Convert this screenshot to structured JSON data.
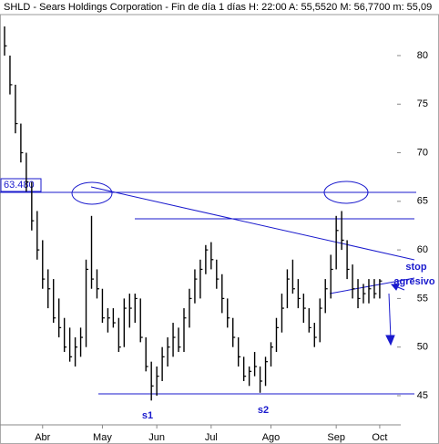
{
  "chart_data": {
    "type": "ohlc",
    "title": "SHLD - Sears Holdings Corporation  - Fin de día 1 días H: 22:00  A: 55,5520  M: 56,7700  m: 55,09",
    "categories": [
      null,
      null,
      null,
      null,
      null,
      null,
      null,
      "Abr",
      null,
      null,
      null,
      null,
      null,
      null,
      null,
      null,
      null,
      null,
      "May",
      null,
      null,
      null,
      null,
      null,
      null,
      null,
      null,
      null,
      "Jun",
      null,
      null,
      null,
      null,
      null,
      null,
      null,
      null,
      null,
      "Jul",
      null,
      null,
      null,
      null,
      null,
      null,
      null,
      null,
      null,
      null,
      "Ago",
      null,
      null,
      null,
      null,
      null,
      null,
      null,
      null,
      null,
      null,
      null,
      "Sep",
      null,
      null,
      null,
      null,
      null,
      null,
      null,
      "Oct"
    ],
    "high": [
      83,
      80,
      77,
      73,
      70,
      67,
      64,
      61,
      58,
      57,
      55,
      53,
      52,
      51,
      52,
      59,
      63.5,
      58,
      56,
      54,
      54,
      53,
      55,
      55.5,
      55.5,
      55,
      51,
      48.5,
      48,
      50,
      51,
      52.5,
      52,
      54,
      56,
      58,
      59,
      60.5,
      60.8,
      59,
      57.5,
      55,
      53,
      51,
      49,
      48,
      49.5,
      48,
      49,
      50.5,
      53,
      55.5,
      58,
      59,
      57,
      55.5,
      54,
      52.5,
      55,
      57,
      59.5,
      63.5,
      64,
      61,
      58.5,
      57,
      56.5,
      57,
      57,
      57
    ],
    "low": [
      80,
      76,
      72,
      69,
      66,
      62,
      59,
      56,
      54,
      52.5,
      51,
      49.5,
      48.5,
      48,
      49,
      50,
      56,
      55,
      52.5,
      51.5,
      52,
      49.5,
      50,
      52,
      52.5,
      50.5,
      47.5,
      44.5,
      45,
      46.5,
      48,
      49,
      49.5,
      49.5,
      52,
      54.5,
      55,
      57.5,
      58,
      56,
      53.5,
      52,
      50,
      48,
      46.5,
      46,
      47,
      45.3,
      46,
      48,
      49.5,
      51.5,
      54,
      55.5,
      54,
      52.5,
      51.5,
      50,
      50.5,
      53.5,
      55,
      58,
      60,
      57,
      55,
      54,
      54.5,
      54.5,
      55,
      55
    ],
    "close": [
      81,
      77,
      73,
      70,
      67,
      63,
      60,
      57,
      56,
      53,
      52,
      50,
      49,
      50,
      51,
      58,
      57,
      56,
      53,
      53,
      52.5,
      50,
      54,
      54,
      55,
      51,
      48,
      46,
      47,
      49,
      50,
      51,
      50,
      53,
      55,
      57,
      58,
      60,
      59,
      57,
      55,
      53,
      51,
      49,
      47,
      47.5,
      48,
      46.5,
      48.5,
      50,
      52,
      54,
      57,
      56,
      55,
      54,
      52,
      51,
      54,
      56,
      58,
      62,
      61,
      58,
      56,
      55,
      55.5,
      56,
      55.5,
      56.8
    ],
    "color": "#000000",
    "ylim": [
      42.09,
      84.03
    ],
    "yticks": [
      45,
      50,
      55,
      60,
      65,
      70,
      75,
      80
    ],
    "level_label": "63.480",
    "annotations": [
      "s1",
      "s2",
      "stop",
      "agresivo"
    ]
  }
}
